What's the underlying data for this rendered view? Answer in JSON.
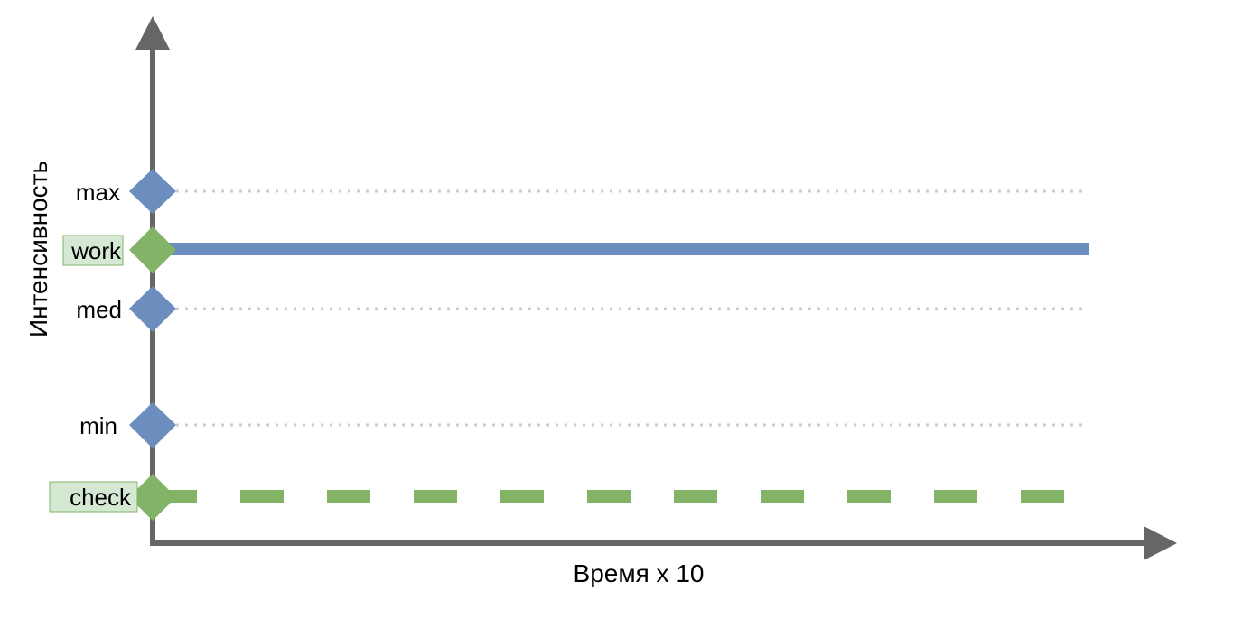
{
  "diagram": {
    "y_axis_label": "Интенсивность",
    "x_axis_label": "Время x 10",
    "levels": [
      {
        "id": "max",
        "label": "max",
        "marker_color": "#6c8ebf",
        "label_boxed": false,
        "line": "dotted"
      },
      {
        "id": "work",
        "label": "work",
        "marker_color": "#82b366",
        "label_boxed": true,
        "line": "solid-thick"
      },
      {
        "id": "med",
        "label": "med",
        "marker_color": "#6c8ebf",
        "label_boxed": false,
        "line": "dotted"
      },
      {
        "id": "min",
        "label": "min",
        "marker_color": "#6c8ebf",
        "label_boxed": false,
        "line": "dotted"
      },
      {
        "id": "check",
        "label": "check",
        "marker_color": "#82b366",
        "label_boxed": true,
        "line": "dashed"
      }
    ],
    "colors": {
      "axis": "#666666",
      "work_line": "#6c8ebf",
      "check_line": "#82b366",
      "dotted_line": "#cccccc",
      "label_box_fill": "#d5e8d4",
      "label_box_stroke": "#82b366"
    }
  }
}
